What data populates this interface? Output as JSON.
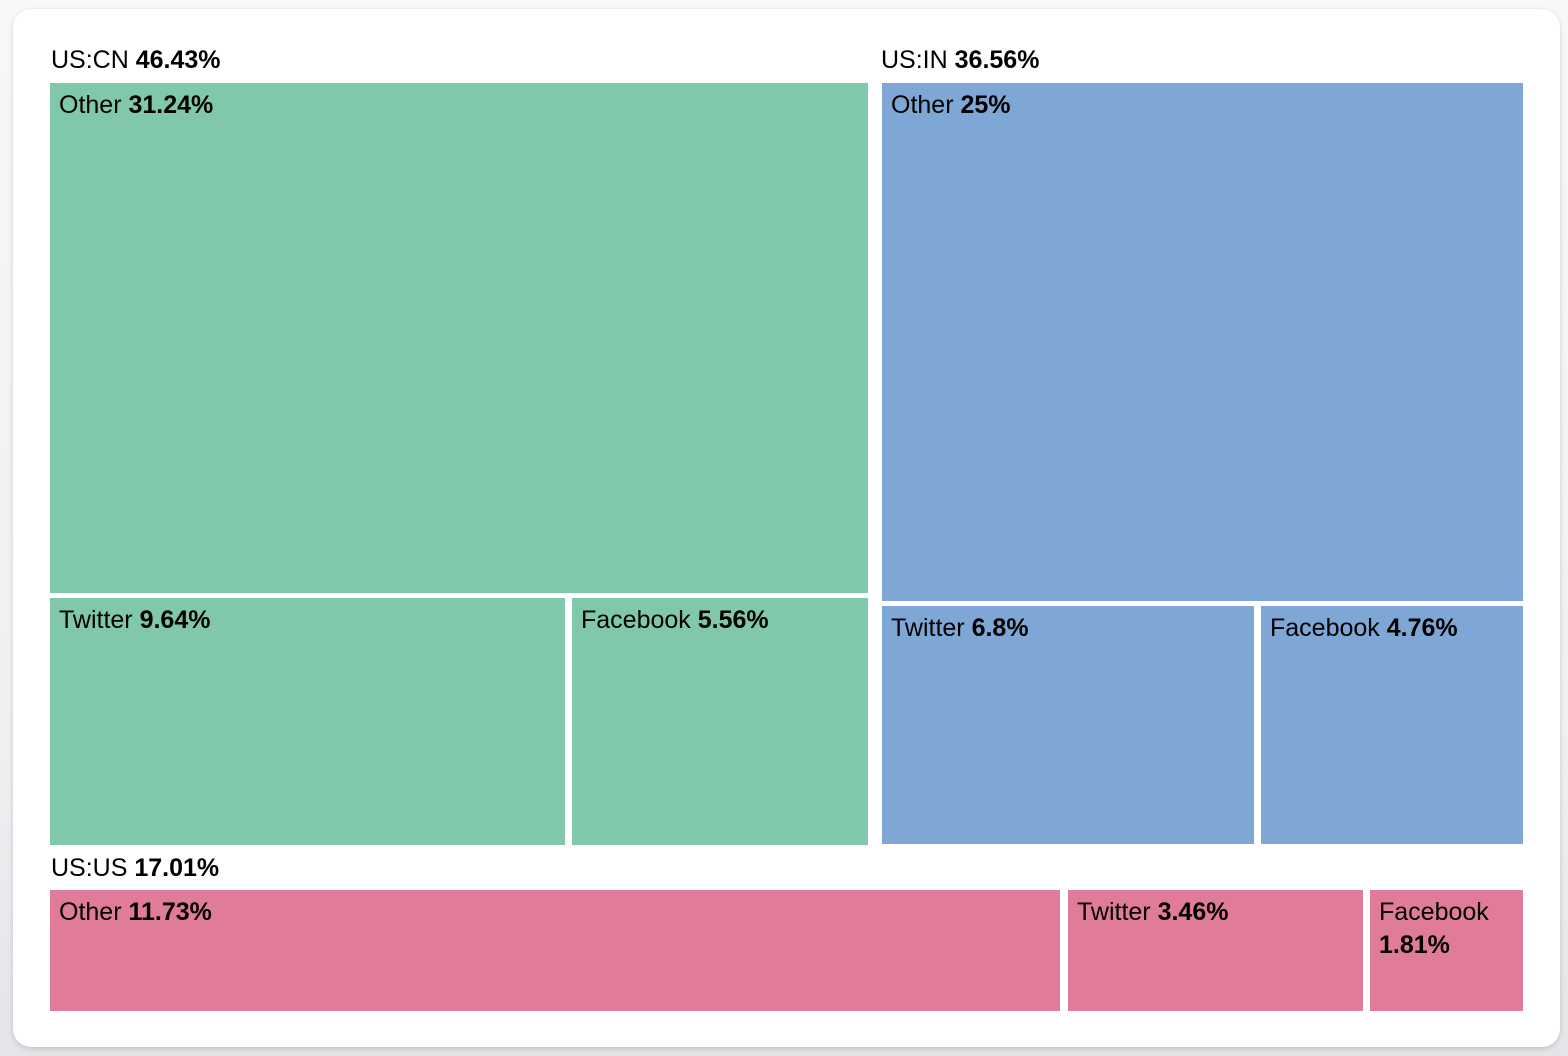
{
  "page": {
    "card_background": "#ffffff",
    "background": "#eef0f2"
  },
  "chart_data": {
    "type": "treemap",
    "title": "",
    "legend": "none",
    "label_position": "top-left",
    "value_format": "percent",
    "groups": [
      {
        "name": "US:CN",
        "value": 46.43,
        "value_label": "46.43%",
        "color": "#80c7ab",
        "children": [
          {
            "name": "Other",
            "value": 31.24,
            "value_label": "31.24%"
          },
          {
            "name": "Twitter",
            "value": 9.64,
            "value_label": "9.64%"
          },
          {
            "name": "Facebook",
            "value": 5.56,
            "value_label": "5.56%"
          }
        ]
      },
      {
        "name": "US:IN",
        "value": 36.56,
        "value_label": "36.56%",
        "color": "#7fa7d6",
        "children": [
          {
            "name": "Other",
            "value": 25,
            "value_label": "25%"
          },
          {
            "name": "Twitter",
            "value": 6.8,
            "value_label": "6.8%"
          },
          {
            "name": "Facebook",
            "value": 4.76,
            "value_label": "4.76%"
          }
        ]
      },
      {
        "name": "US:US",
        "value": 17.01,
        "value_label": "17.01%",
        "color": "#e07c99",
        "children": [
          {
            "name": "Other",
            "value": 11.73,
            "value_label": "11.73%"
          },
          {
            "name": "Twitter",
            "value": 3.46,
            "value_label": "3.46%"
          },
          {
            "name": "Facebook",
            "value": 1.81,
            "value_label": "1.81%"
          }
        ]
      }
    ]
  }
}
